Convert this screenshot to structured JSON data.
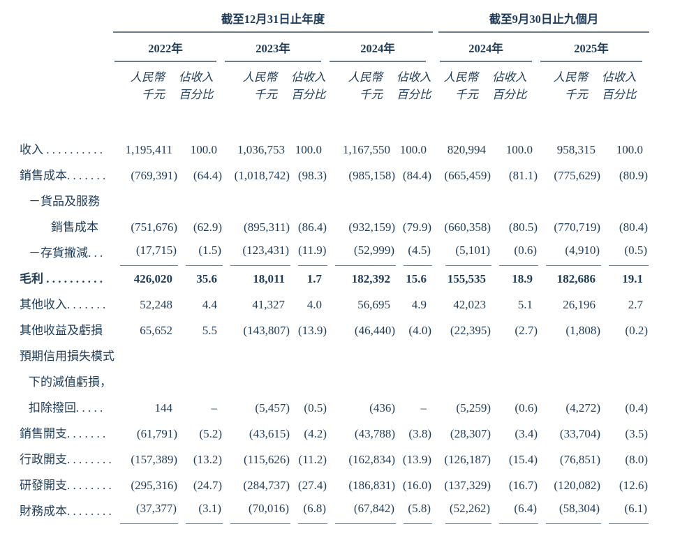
{
  "table": {
    "groups": [
      {
        "title": "截至12月31日止年度",
        "years": [
          "2022年",
          "2023年",
          "2024年"
        ]
      },
      {
        "title": "截至9月30日止九個月",
        "years": [
          "2024年",
          "2025年"
        ]
      }
    ],
    "subheaders": {
      "amount_line1": "人民幣",
      "amount_line2": "千元",
      "pct_line1": "佔收入",
      "pct_line2": "百分比"
    },
    "text_color": "#1e3c59",
    "rule_color": "#6d7c89",
    "rows": [
      {
        "lines": [
          {
            "text": "收入 . . . . . . . . . .",
            "indent": 0
          }
        ],
        "bold": false,
        "underline": false,
        "values": [
          "1,195,411",
          "100.0",
          "1,036,753",
          "100.0",
          "1,167,550",
          "100.0",
          "820,994",
          "100.0",
          "958,315",
          "100.0"
        ]
      },
      {
        "lines": [
          {
            "text": "銷售成本. . . . . . .",
            "indent": 0
          }
        ],
        "bold": false,
        "underline": false,
        "values": [
          "(769,391)",
          "(64.4)",
          "(1,018,742)",
          "(98.3)",
          "(985,158)",
          "(84.4)",
          "(665,459)",
          "(81.1)",
          "(775,629)",
          "(80.9)"
        ]
      },
      {
        "lines": [
          {
            "text": "－貨品及服務",
            "indent": 1
          },
          {
            "text": "銷售成本",
            "indent": 2
          }
        ],
        "bold": false,
        "underline": false,
        "values": [
          "(751,676)",
          "(62.9)",
          "(895,311)",
          "(86.4)",
          "(932,159)",
          "(79.9)",
          "(660,358)",
          "(80.5)",
          "(770,719)",
          "(80.4)"
        ]
      },
      {
        "lines": [
          {
            "text": "－存貨撇減. . .",
            "indent": 1
          }
        ],
        "bold": false,
        "underline": true,
        "values": [
          "(17,715)",
          "(1.5)",
          "(123,431)",
          "(11.9)",
          "(52,999)",
          "(4.5)",
          "(5,101)",
          "(0.6)",
          "(4,910)",
          "(0.5)"
        ]
      },
      {
        "lines": [
          {
            "text": "毛利 . . . . . . . . . .",
            "indent": 0
          }
        ],
        "bold": true,
        "underline": false,
        "values": [
          "426,020",
          "35.6",
          "18,011",
          "1.7",
          "182,392",
          "15.6",
          "155,535",
          "18.9",
          "182,686",
          "19.1"
        ]
      },
      {
        "lines": [
          {
            "text": "其他收入. . . . . . .",
            "indent": 0
          }
        ],
        "bold": false,
        "underline": false,
        "values": [
          "52,248",
          "4.4",
          "41,327",
          "4.0",
          "56,695",
          "4.9",
          "42,023",
          "5.1",
          "26,196",
          "2.7"
        ]
      },
      {
        "lines": [
          {
            "text": "其他收益及虧損",
            "indent": 0
          }
        ],
        "bold": false,
        "underline": false,
        "values": [
          "65,652",
          "5.5",
          "(143,807)",
          "(13.9)",
          "(46,440)",
          "(4.0)",
          "(22,395)",
          "(2.7)",
          "(1,808)",
          "(0.2)"
        ]
      },
      {
        "lines": [
          {
            "text": "預期信用損失模式",
            "indent": 0
          },
          {
            "text": "下的減值虧損，",
            "indent": 1
          },
          {
            "text": "扣除撥回. . . . .",
            "indent": 1
          }
        ],
        "bold": false,
        "underline": false,
        "values": [
          "144",
          "–",
          "(5,457)",
          "(0.5)",
          "(436)",
          "–",
          "(5,259)",
          "(0.6)",
          "(4,272)",
          "(0.4)"
        ]
      },
      {
        "lines": [
          {
            "text": "銷售開支. . . . . . .",
            "indent": 0
          }
        ],
        "bold": false,
        "underline": false,
        "values": [
          "(61,791)",
          "(5.2)",
          "(43,615)",
          "(4.2)",
          "(43,788)",
          "(3.8)",
          "(28,307)",
          "(3.4)",
          "(33,704)",
          "(3.5)"
        ]
      },
      {
        "lines": [
          {
            "text": "行政開支. . . . . . . .",
            "indent": 0
          }
        ],
        "bold": false,
        "underline": false,
        "values": [
          "(157,389)",
          "(13.2)",
          "(115,626)",
          "(11.2)",
          "(162,834)",
          "(13.9)",
          "(126,187)",
          "(15.4)",
          "(76,851)",
          "(8.0)"
        ]
      },
      {
        "lines": [
          {
            "text": "研發開支. . . . . . . .",
            "indent": 0
          }
        ],
        "bold": false,
        "underline": false,
        "values": [
          "(295,316)",
          "(24.7)",
          "(284,737)",
          "(27.4)",
          "(186,831)",
          "(16.0)",
          "(137,329)",
          "(16.7)",
          "(120,082)",
          "(12.6)"
        ]
      },
      {
        "lines": [
          {
            "text": "財務成本. . . . . . . .",
            "indent": 0
          }
        ],
        "bold": false,
        "underline": true,
        "values": [
          "(37,377)",
          "(3.1)",
          "(70,016)",
          "(6.8)",
          "(67,842)",
          "(5.8)",
          "(52,262)",
          "(6.4)",
          "(58,304)",
          "(6.1)"
        ]
      }
    ]
  }
}
